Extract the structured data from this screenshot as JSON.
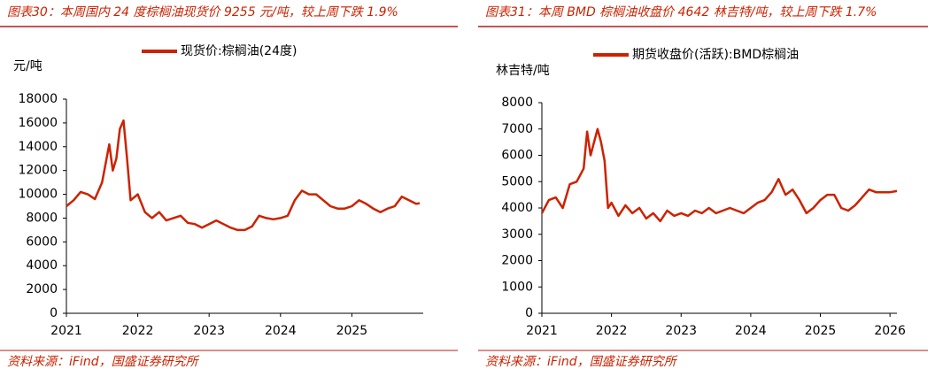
{
  "chart_data": [
    {
      "type": "line",
      "title": "图表30：本周国内 24 度棕榈油现货价 9255 元/吨，较上周下跌 1.9%",
      "y_label": "元/吨",
      "source": "资料来源：iFind，国盛证券研究所",
      "x": [
        2021.0,
        2021.1,
        2021.2,
        2021.3,
        2021.4,
        2021.5,
        2021.6,
        2021.65,
        2021.7,
        2021.75,
        2021.8,
        2021.85,
        2021.9,
        2022.0,
        2022.1,
        2022.2,
        2022.3,
        2022.4,
        2022.5,
        2022.6,
        2022.7,
        2022.8,
        2022.9,
        2023.0,
        2023.1,
        2023.2,
        2023.3,
        2023.4,
        2023.5,
        2023.6,
        2023.7,
        2023.8,
        2023.9,
        2024.0,
        2024.1,
        2024.2,
        2024.3,
        2024.4,
        2024.5,
        2024.6,
        2024.7,
        2024.8,
        2024.9,
        2025.0,
        2025.1,
        2025.2,
        2025.3,
        2025.4,
        2025.5,
        2025.6,
        2025.7,
        2025.8,
        2025.9,
        2025.95
      ],
      "series": [
        {
          "name": "现货价:棕榈油(24度)",
          "color": "#cc2200",
          "values": [
            9000,
            9500,
            10200,
            10000,
            9600,
            11000,
            14200,
            12000,
            13000,
            15500,
            16200,
            13000,
            9500,
            10000,
            8500,
            8000,
            8500,
            7800,
            8000,
            8200,
            7600,
            7500,
            7200,
            7500,
            7800,
            7500,
            7200,
            7000,
            7000,
            7300,
            8200,
            8000,
            7900,
            8000,
            8200,
            9500,
            10300,
            10000,
            10000,
            9500,
            9000,
            8800,
            8800,
            9000,
            9500,
            9200,
            8800,
            8500,
            8800,
            9000,
            9800,
            9500,
            9200,
            9255
          ]
        }
      ],
      "xlim": [
        2021,
        2026
      ],
      "xticks": [
        2021,
        2022,
        2023,
        2024,
        2025
      ],
      "ylim": [
        0,
        18000
      ],
      "yticks": [
        0,
        2000,
        4000,
        6000,
        8000,
        10000,
        12000,
        14000,
        16000,
        18000
      ]
    },
    {
      "type": "line",
      "title": "图表31：本周 BMD 棕榈油收盘价 4642 林吉特/吨，较上周下跌 1.7%",
      "y_label": "林吉特/吨",
      "source": "资料来源：iFind，国盛证券研究所",
      "x": [
        2021.0,
        2021.1,
        2021.2,
        2021.3,
        2021.4,
        2021.5,
        2021.6,
        2021.65,
        2021.7,
        2021.8,
        2021.85,
        2021.9,
        2021.95,
        2022.0,
        2022.1,
        2022.2,
        2022.3,
        2022.4,
        2022.5,
        2022.6,
        2022.7,
        2022.8,
        2022.9,
        2023.0,
        2023.1,
        2023.2,
        2023.3,
        2023.4,
        2023.5,
        2023.6,
        2023.7,
        2023.8,
        2023.9,
        2024.0,
        2024.1,
        2024.2,
        2024.3,
        2024.4,
        2024.5,
        2024.6,
        2024.7,
        2024.8,
        2024.9,
        2025.0,
        2025.1,
        2025.2,
        2025.3,
        2025.4,
        2025.5,
        2025.6,
        2025.7,
        2025.8,
        2025.9,
        2026.0,
        2026.1
      ],
      "series": [
        {
          "name": "期货收盘价(活跃):BMD棕榈油",
          "color": "#cc2200",
          "values": [
            3800,
            4300,
            4400,
            4000,
            4900,
            5000,
            5500,
            6900,
            6000,
            7000,
            6500,
            5800,
            4000,
            4200,
            3700,
            4100,
            3800,
            4000,
            3600,
            3800,
            3500,
            3900,
            3700,
            3800,
            3700,
            3900,
            3800,
            4000,
            3800,
            3900,
            4000,
            3900,
            3800,
            4000,
            4200,
            4300,
            4600,
            5100,
            4500,
            4700,
            4300,
            3800,
            4000,
            4300,
            4500,
            4500,
            4000,
            3900,
            4100,
            4400,
            4700,
            4600,
            4600,
            4600,
            4642
          ]
        }
      ],
      "xlim": [
        2021,
        2026.1
      ],
      "xticks": [
        2021,
        2022,
        2023,
        2024,
        2025,
        2026
      ],
      "ylim": [
        0,
        8000
      ],
      "yticks": [
        0,
        1000,
        2000,
        3000,
        4000,
        5000,
        6000,
        7000,
        8000
      ]
    }
  ]
}
